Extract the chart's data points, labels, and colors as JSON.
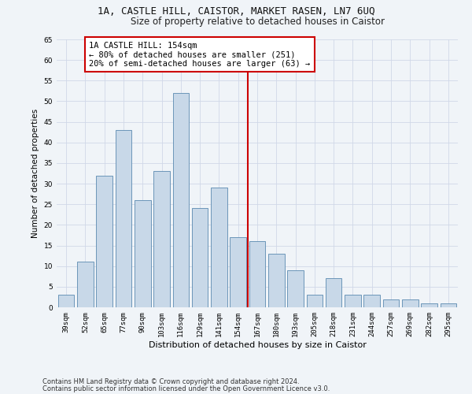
{
  "title1": "1A, CASTLE HILL, CAISTOR, MARKET RASEN, LN7 6UQ",
  "title2": "Size of property relative to detached houses in Caistor",
  "xlabel": "Distribution of detached houses by size in Caistor",
  "ylabel": "Number of detached properties",
  "categories": [
    "39sqm",
    "52sqm",
    "65sqm",
    "77sqm",
    "90sqm",
    "103sqm",
    "116sqm",
    "129sqm",
    "141sqm",
    "154sqm",
    "167sqm",
    "180sqm",
    "193sqm",
    "205sqm",
    "218sqm",
    "231sqm",
    "244sqm",
    "257sqm",
    "269sqm",
    "282sqm",
    "295sqm"
  ],
  "values": [
    3,
    11,
    32,
    43,
    26,
    33,
    52,
    24,
    29,
    17,
    16,
    13,
    9,
    3,
    7,
    3,
    3,
    2,
    2,
    1,
    1
  ],
  "bar_color": "#c8d8e8",
  "bar_edge_color": "#5a8ab0",
  "highlight_index": 9,
  "highlight_line_color": "#cc0000",
  "annotation_text": "1A CASTLE HILL: 154sqm\n← 80% of detached houses are smaller (251)\n20% of semi-detached houses are larger (63) →",
  "annotation_box_color": "#ffffff",
  "annotation_box_edge_color": "#cc0000",
  "ylim": [
    0,
    65
  ],
  "yticks": [
    0,
    5,
    10,
    15,
    20,
    25,
    30,
    35,
    40,
    45,
    50,
    55,
    60,
    65
  ],
  "grid_color": "#d0d8e8",
  "footnote1": "Contains HM Land Registry data © Crown copyright and database right 2024.",
  "footnote2": "Contains public sector information licensed under the Open Government Licence v3.0.",
  "bg_color": "#f0f4f8",
  "title1_fontsize": 9,
  "title2_fontsize": 8.5,
  "xlabel_fontsize": 8,
  "ylabel_fontsize": 7.5,
  "tick_fontsize": 6.5,
  "annotation_fontsize": 7.5,
  "footnote_fontsize": 6
}
